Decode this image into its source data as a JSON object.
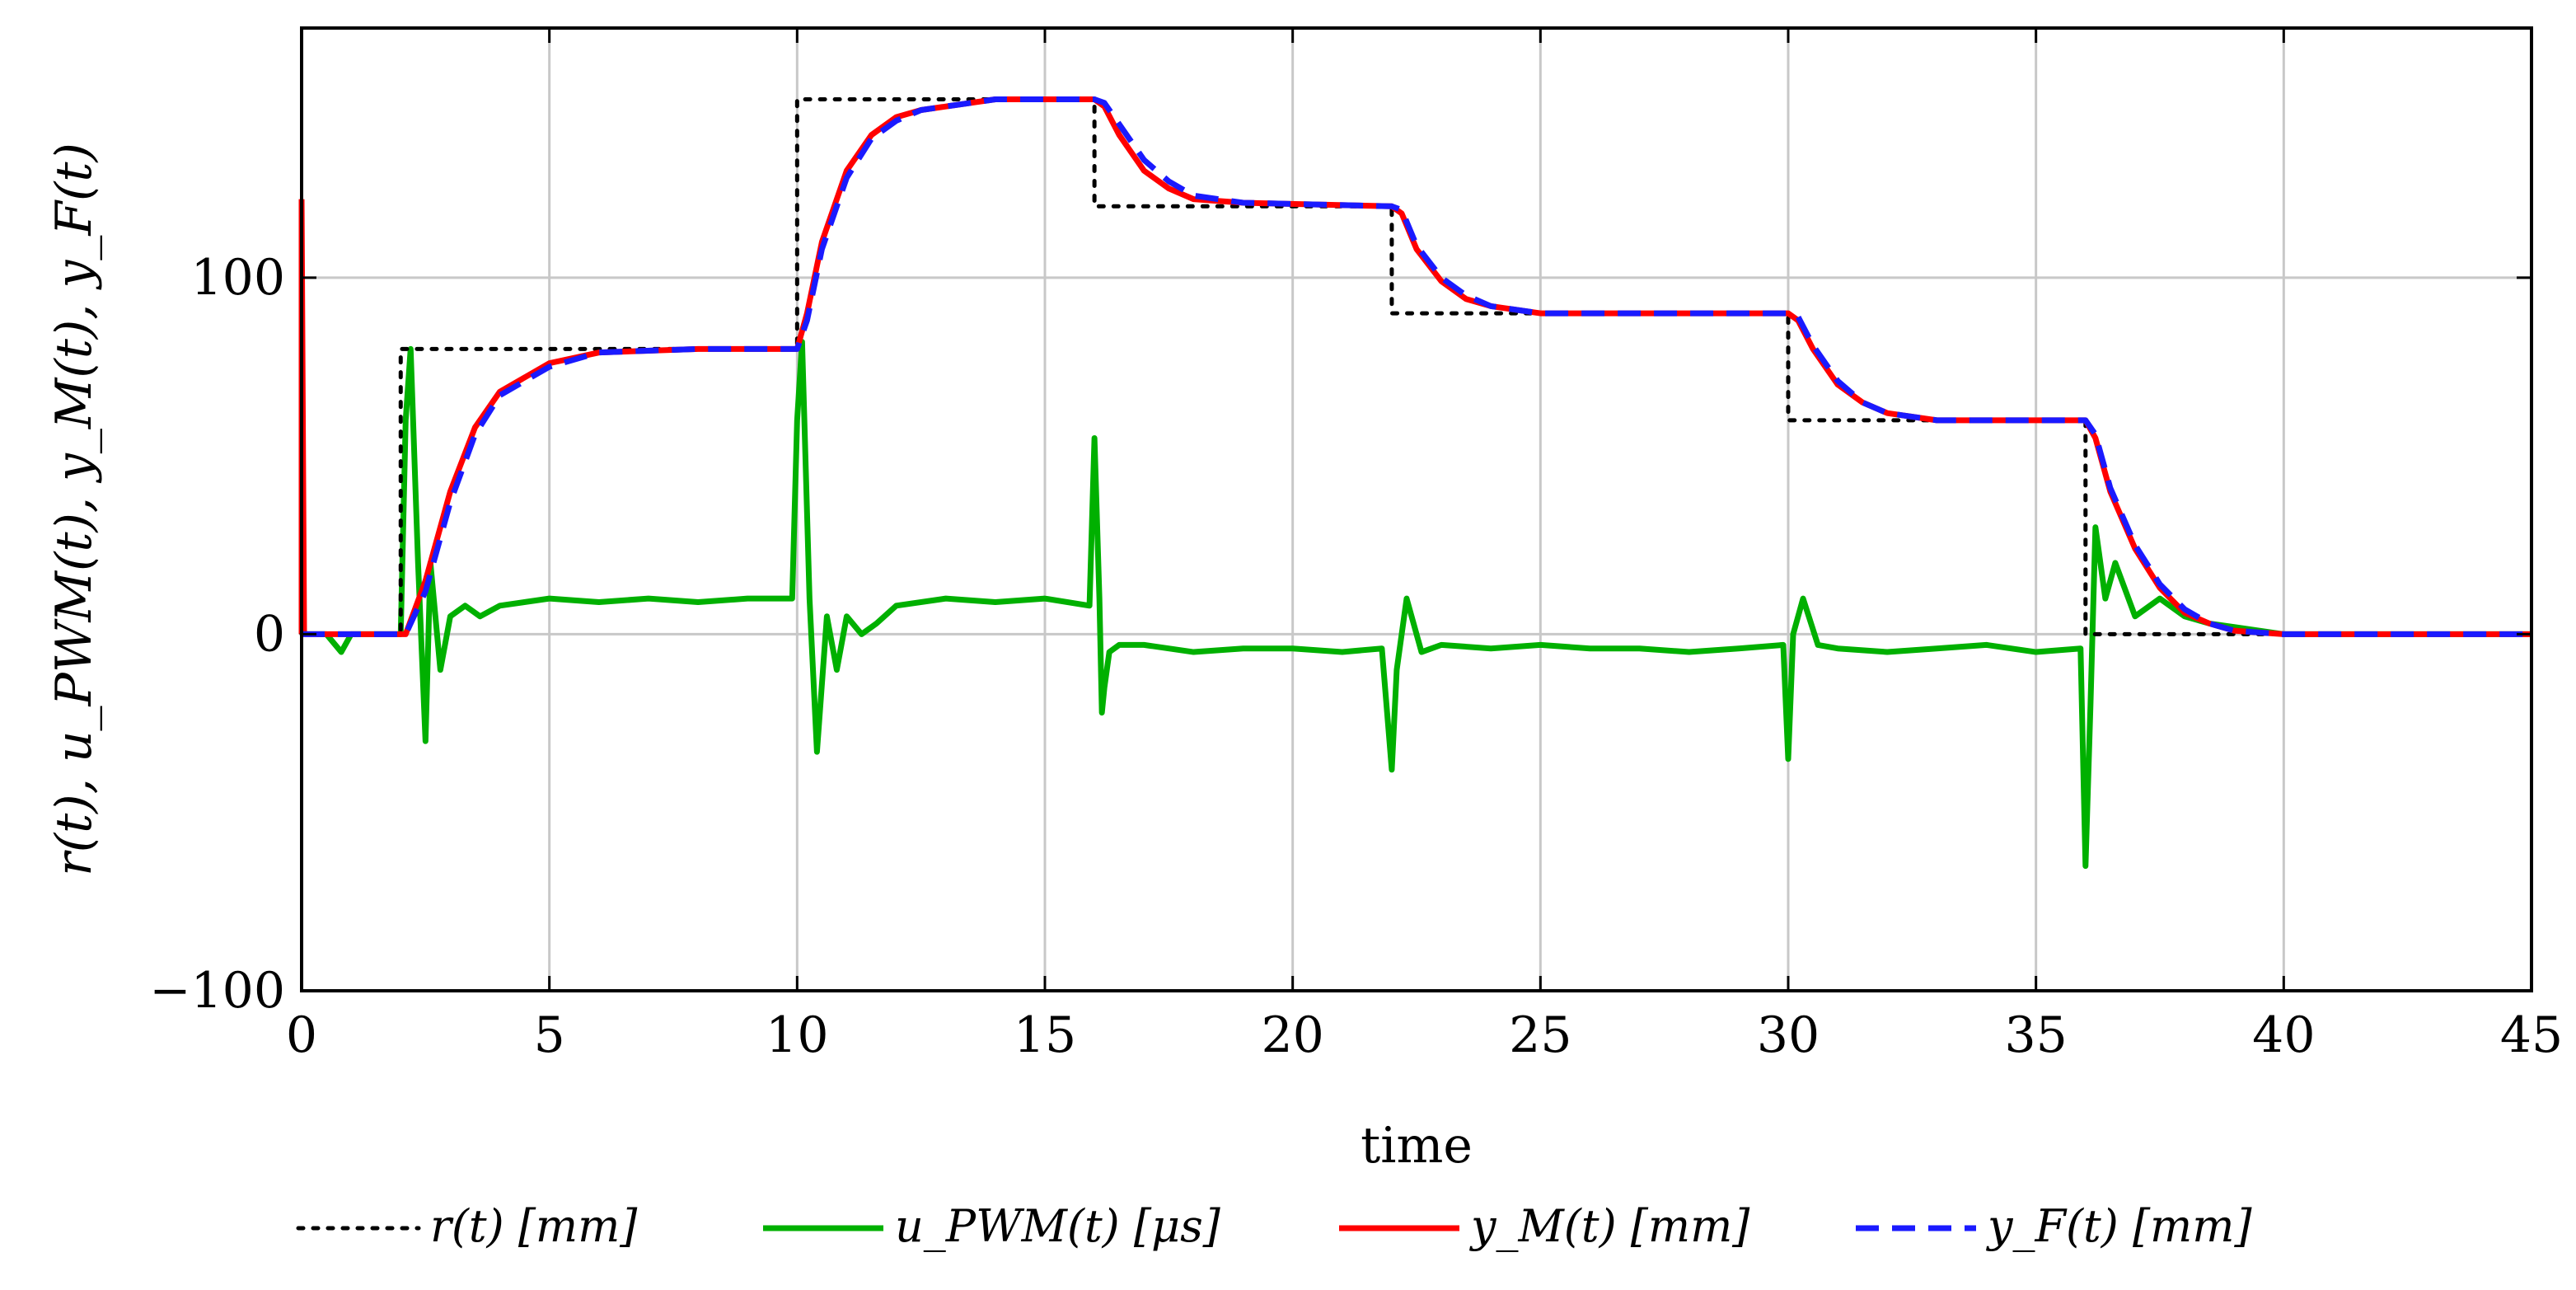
{
  "chart_data": {
    "type": "line",
    "title": "",
    "xlabel": "time",
    "ylabel": "r(t), u_PWM(t), y_M(t), y_F(t)",
    "xlim": [
      0,
      45
    ],
    "ylim": [
      -100,
      170
    ],
    "grid": true,
    "legend_position": "bottom",
    "x_ticks": [
      0,
      5,
      10,
      15,
      20,
      25,
      30,
      35,
      40,
      45
    ],
    "x_tick_labels": [
      "0",
      "5",
      "10",
      "15",
      "20",
      "25",
      "30",
      "35",
      "40",
      "45"
    ],
    "y_ticks": [
      -100,
      0,
      100
    ],
    "y_tick_labels": [
      "−100",
      "0",
      "100"
    ],
    "series": [
      {
        "name": "r(t) [mm]",
        "color": "#000000",
        "style": "dotted",
        "x": [
          0,
          2,
          2,
          10,
          10,
          16,
          16,
          22,
          22,
          30,
          30,
          36,
          36,
          45
        ],
        "y": [
          0,
          0,
          80,
          80,
          150,
          150,
          120,
          120,
          90,
          90,
          60,
          60,
          0,
          0
        ]
      },
      {
        "name": "u_PWM(t) [μs]",
        "color": "#00b000",
        "style": "solid",
        "x": [
          0,
          0.5,
          0.8,
          1.0,
          1.5,
          2.0,
          2.1,
          2.2,
          2.35,
          2.5,
          2.6,
          2.8,
          3.0,
          3.3,
          3.6,
          4.0,
          5.0,
          6.0,
          7.0,
          8.0,
          9.0,
          9.9,
          10.0,
          10.1,
          10.25,
          10.4,
          10.6,
          10.8,
          11.0,
          11.3,
          11.6,
          12.0,
          13.0,
          14.0,
          15.0,
          15.9,
          16.0,
          16.1,
          16.15,
          16.2,
          16.3,
          16.5,
          17.0,
          18.0,
          19.0,
          20.0,
          21.0,
          21.8,
          22.0,
          22.1,
          22.3,
          22.6,
          23.0,
          24.0,
          25.0,
          26.0,
          27.0,
          28.0,
          29.0,
          29.9,
          30.0,
          30.1,
          30.3,
          30.6,
          31.0,
          32.0,
          33.0,
          34.0,
          35.0,
          35.9,
          36.0,
          36.1,
          36.2,
          36.4,
          36.6,
          37.0,
          37.5,
          38.0,
          38.5,
          39.0,
          39.5,
          40.0,
          42.0,
          45.0
        ],
        "y": [
          0,
          0,
          -5,
          0,
          0,
          0,
          60,
          80,
          20,
          -30,
          20,
          -10,
          5,
          8,
          5,
          8,
          10,
          9,
          10,
          9,
          10,
          10,
          60,
          82,
          10,
          -33,
          5,
          -10,
          5,
          0,
          3,
          8,
          10,
          9,
          10,
          8,
          55,
          10,
          -22,
          -15,
          -5,
          -3,
          -3,
          -5,
          -4,
          -4,
          -5,
          -4,
          -38,
          -10,
          10,
          -5,
          -3,
          -4,
          -3,
          -4,
          -4,
          -5,
          -4,
          -3,
          -35,
          0,
          10,
          -3,
          -4,
          -5,
          -4,
          -3,
          -5,
          -4,
          -65,
          -20,
          30,
          10,
          20,
          5,
          10,
          5,
          3,
          2,
          1,
          0,
          0,
          0
        ]
      },
      {
        "name": "y_M(t) [mm]",
        "color": "#ff0000",
        "style": "solid",
        "x": [
          0,
          2.1,
          2.5,
          3.0,
          3.5,
          4.0,
          5.0,
          6.0,
          8.0,
          10.0,
          10.2,
          10.5,
          11.0,
          11.5,
          12.0,
          12.5,
          13.0,
          14.0,
          16.0,
          16.2,
          16.5,
          17.0,
          17.5,
          18.0,
          19.0,
          22.0,
          22.2,
          22.5,
          23.0,
          23.5,
          24.0,
          25.0,
          30.0,
          30.2,
          30.5,
          31.0,
          31.5,
          32.0,
          33.0,
          36.0,
          36.2,
          36.5,
          37.0,
          37.5,
          38.0,
          38.5,
          39.0,
          40.0,
          45.0
        ],
        "y": [
          0,
          0,
          15,
          40,
          58,
          68,
          76,
          79,
          80,
          80,
          90,
          110,
          130,
          140,
          145,
          147,
          148,
          150,
          150,
          148,
          140,
          130,
          125,
          122,
          121,
          120,
          118,
          108,
          99,
          94,
          92,
          90,
          90,
          88,
          80,
          70,
          65,
          62,
          60,
          60,
          55,
          40,
          24,
          13,
          6,
          3,
          1,
          0,
          0
        ]
      },
      {
        "name": "y_F(t) [mm]",
        "color": "#1a1aff",
        "style": "dashed",
        "x": [
          0,
          2.1,
          2.5,
          3.0,
          3.5,
          4.0,
          5.0,
          6.0,
          8.0,
          10.0,
          10.2,
          10.5,
          11.0,
          11.5,
          12.0,
          12.5,
          13.0,
          14.0,
          16.0,
          16.2,
          16.5,
          17.0,
          17.5,
          18.0,
          19.0,
          22.0,
          22.2,
          22.5,
          23.0,
          23.5,
          24.0,
          25.0,
          30.0,
          30.2,
          30.5,
          31.0,
          31.5,
          32.0,
          33.0,
          36.0,
          36.2,
          36.5,
          37.0,
          37.5,
          38.0,
          38.5,
          39.0,
          40.0,
          45.0
        ],
        "y": [
          0,
          0,
          12,
          37,
          56,
          67,
          75,
          79,
          80,
          80,
          88,
          108,
          128,
          139,
          144,
          147,
          148,
          150,
          150,
          149,
          143,
          133,
          127,
          123,
          121,
          120,
          119,
          109,
          100,
          95,
          92,
          90,
          90,
          89,
          81,
          71,
          65,
          62,
          60,
          60,
          56,
          41,
          25,
          14,
          7,
          3,
          1,
          0,
          0
        ]
      }
    ],
    "overshoot_note": {
      "x": [
        0,
        0,
        0.05
      ],
      "y": [
        0,
        122,
        0
      ]
    },
    "legend": [
      {
        "label": "r(t) [mm]"
      },
      {
        "label": "u_PWM(t) [μs]"
      },
      {
        "label": "y_M(t) [mm]"
      },
      {
        "label": "y_F(t) [mm]"
      }
    ]
  }
}
